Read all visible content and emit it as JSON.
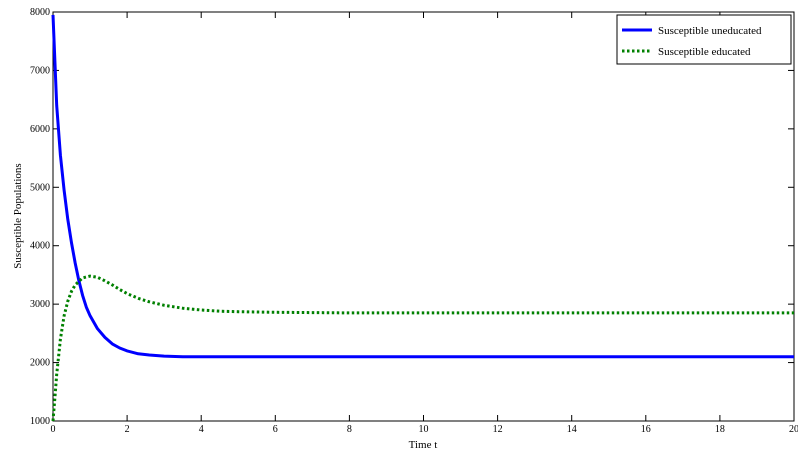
{
  "chart_data": {
    "type": "line",
    "xlabel": "Time t",
    "ylabel": "Susceptible Populations",
    "xlim": [
      0,
      20
    ],
    "ylim": [
      1000,
      8000
    ],
    "xticks": [
      0,
      2,
      4,
      6,
      8,
      10,
      12,
      14,
      16,
      18,
      20
    ],
    "yticks": [
      1000,
      2000,
      3000,
      4000,
      5000,
      6000,
      7000,
      8000
    ],
    "grid": false,
    "legend_position": "top-right",
    "series": [
      {
        "name": "Susceptible uneducated",
        "color": "#0000ff",
        "style": "solid",
        "x": [
          0,
          0.1,
          0.2,
          0.3,
          0.4,
          0.5,
          0.6,
          0.7,
          0.8,
          0.9,
          1.0,
          1.2,
          1.4,
          1.6,
          1.8,
          2.0,
          2.3,
          2.6,
          3.0,
          3.5,
          4.0,
          5.0,
          6.0,
          8.0,
          10.0,
          12.0,
          14.0,
          16.0,
          18.0,
          20.0
        ],
        "y": [
          7950,
          6400,
          5550,
          4950,
          4450,
          4050,
          3700,
          3400,
          3150,
          2950,
          2800,
          2580,
          2430,
          2320,
          2250,
          2200,
          2150,
          2130,
          2110,
          2100,
          2100,
          2100,
          2100,
          2100,
          2100,
          2100,
          2100,
          2100,
          2100,
          2100
        ]
      },
      {
        "name": "Susceptible educated",
        "color": "#008000",
        "style": "dotted",
        "x": [
          0,
          0.05,
          0.1,
          0.2,
          0.3,
          0.4,
          0.5,
          0.6,
          0.8,
          1.0,
          1.2,
          1.4,
          1.6,
          1.8,
          2.0,
          2.3,
          2.6,
          3.0,
          3.5,
          4.0,
          4.5,
          5.0,
          5.5,
          6.0,
          7.0,
          8.0,
          10.0,
          12.0,
          14.0,
          16.0,
          18.0,
          20.0
        ],
        "y": [
          1000,
          1400,
          1800,
          2400,
          2800,
          3050,
          3220,
          3330,
          3450,
          3480,
          3460,
          3400,
          3330,
          3250,
          3180,
          3100,
          3040,
          2980,
          2930,
          2900,
          2880,
          2870,
          2865,
          2860,
          2855,
          2850,
          2850,
          2850,
          2850,
          2850,
          2850,
          2850
        ]
      }
    ]
  }
}
